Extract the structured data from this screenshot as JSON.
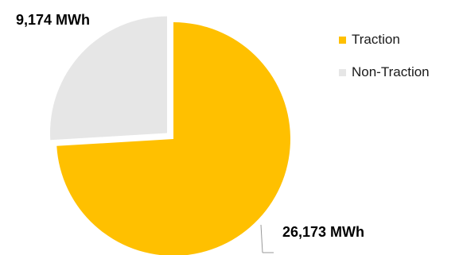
{
  "chart_data": {
    "type": "pie",
    "slices": [
      {
        "name": "Traction",
        "value": 26173,
        "label": "26,173 MWh",
        "color": "#FFC000",
        "exploded": false
      },
      {
        "name": "Non-Traction",
        "value": 9174,
        "label": "9,174 MWh",
        "color": "#E6E6E6",
        "exploded": true
      }
    ],
    "legend_position": "right",
    "start": "12 o'clock",
    "direction": "clockwise"
  }
}
